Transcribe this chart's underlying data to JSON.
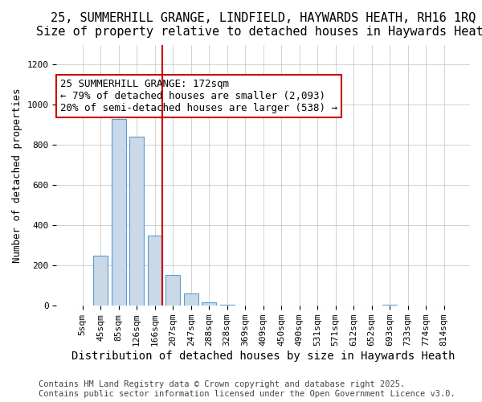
{
  "title": "25, SUMMERHILL GRANGE, LINDFIELD, HAYWARDS HEATH, RH16 1RQ",
  "subtitle": "Size of property relative to detached houses in Haywards Heath",
  "xlabel": "Distribution of detached houses by size in Haywards Heath",
  "ylabel": "Number of detached properties",
  "categories": [
    "5sqm",
    "45sqm",
    "85sqm",
    "126sqm",
    "166sqm",
    "207sqm",
    "247sqm",
    "288sqm",
    "328sqm",
    "369sqm",
    "409sqm",
    "450sqm",
    "490sqm",
    "531sqm",
    "571sqm",
    "612sqm",
    "652sqm",
    "693sqm",
    "733sqm",
    "774sqm",
    "814sqm"
  ],
  "values": [
    0,
    250,
    930,
    840,
    350,
    155,
    60,
    18,
    5,
    0,
    0,
    0,
    0,
    0,
    0,
    0,
    0,
    4,
    0,
    0,
    0
  ],
  "bar_color": "#c9d9e8",
  "bar_edge_color": "#5b9bd5",
  "highlight_index": 4,
  "highlight_line_color": "#cc0000",
  "ylim": [
    0,
    1300
  ],
  "yticks": [
    0,
    200,
    400,
    600,
    800,
    1000,
    1200
  ],
  "annotation_title": "25 SUMMERHILL GRANGE: 172sqm",
  "annotation_line1": "← 79% of detached houses are smaller (2,093)",
  "annotation_line2": "20% of semi-detached houses are larger (538) →",
  "annotation_box_color": "#cc0000",
  "footer_line1": "Contains HM Land Registry data © Crown copyright and database right 2025.",
  "footer_line2": "Contains public sector information licensed under the Open Government Licence v3.0.",
  "title_fontsize": 11,
  "subtitle_fontsize": 10,
  "xlabel_fontsize": 10,
  "ylabel_fontsize": 9,
  "tick_fontsize": 8,
  "annotation_fontsize": 9,
  "footer_fontsize": 7.5
}
